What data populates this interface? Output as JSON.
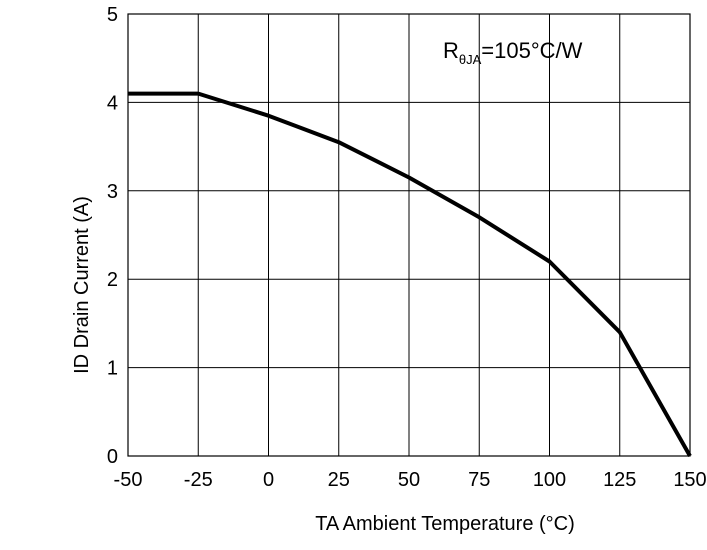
{
  "chart_data": {
    "type": "line",
    "title": "",
    "annotation": {
      "prefix": "R",
      "subscript": "θJA",
      "suffix": "=105°C/W"
    },
    "xlabel": "TA Ambient Temperature (°C)",
    "ylabel": "ID Drain Current (A)",
    "xlim": [
      -50,
      150
    ],
    "ylim": [
      0,
      5
    ],
    "x_ticks": [
      -50,
      -25,
      0,
      25,
      50,
      75,
      100,
      125,
      150
    ],
    "y_ticks": [
      0,
      1,
      2,
      3,
      4,
      5
    ],
    "grid": true,
    "legend": "none",
    "series": [
      {
        "x": [
          -50,
          -25,
          0,
          25,
          50,
          75,
          100,
          125,
          150
        ],
        "y": [
          4.1,
          4.1,
          3.85,
          3.55,
          3.15,
          2.7,
          2.2,
          1.4,
          0.0
        ]
      }
    ],
    "colors": {
      "line": "#000000",
      "grid": "#000000",
      "background": "#ffffff"
    }
  }
}
